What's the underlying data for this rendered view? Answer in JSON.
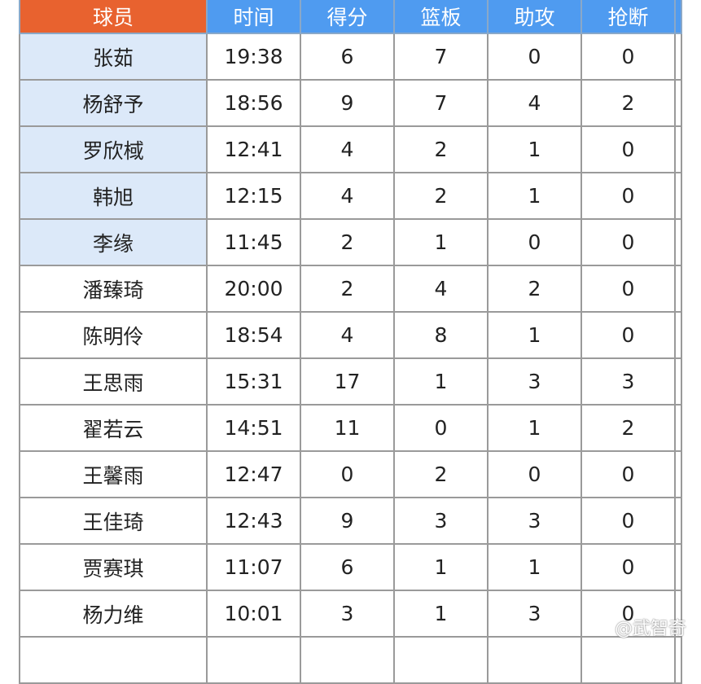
{
  "headers": [
    "球员",
    "时间",
    "得分",
    "篮板",
    "助攻",
    "抢断"
  ],
  "rows": [
    {
      "name": "张茹",
      "time": "19:38",
      "pts": "6",
      "reb": "7",
      "ast": "0",
      "stl": "0",
      "highlight": true
    },
    {
      "name": "杨舒予",
      "time": "18:56",
      "pts": "9",
      "reb": "7",
      "ast": "4",
      "stl": "2",
      "highlight": true
    },
    {
      "name": "罗欣棫",
      "time": "12:41",
      "pts": "4",
      "reb": "2",
      "ast": "1",
      "stl": "0",
      "highlight": true
    },
    {
      "name": "韩旭",
      "time": "12:15",
      "pts": "4",
      "reb": "2",
      "ast": "1",
      "stl": "0",
      "highlight": true
    },
    {
      "name": "李缘",
      "time": "11:45",
      "pts": "2",
      "reb": "1",
      "ast": "0",
      "stl": "0",
      "highlight": true
    },
    {
      "name": "潘臻琦",
      "time": "20:00",
      "pts": "2",
      "reb": "4",
      "ast": "2",
      "stl": "0",
      "highlight": false
    },
    {
      "name": "陈明伶",
      "time": "18:54",
      "pts": "4",
      "reb": "8",
      "ast": "1",
      "stl": "0",
      "highlight": false
    },
    {
      "name": "王思雨",
      "time": "15:31",
      "pts": "17",
      "reb": "1",
      "ast": "3",
      "stl": "3",
      "highlight": false
    },
    {
      "name": "翟若云",
      "time": "14:51",
      "pts": "11",
      "reb": "0",
      "ast": "1",
      "stl": "2",
      "highlight": false
    },
    {
      "name": "王馨雨",
      "time": "12:47",
      "pts": "0",
      "reb": "2",
      "ast": "0",
      "stl": "0",
      "highlight": false
    },
    {
      "name": "王佳琦",
      "time": "12:43",
      "pts": "9",
      "reb": "3",
      "ast": "3",
      "stl": "0",
      "highlight": false
    },
    {
      "name": "贾赛琪",
      "time": "11:07",
      "pts": "6",
      "reb": "1",
      "ast": "1",
      "stl": "0",
      "highlight": false
    },
    {
      "name": "杨力维",
      "time": "10:01",
      "pts": "3",
      "reb": "1",
      "ast": "3",
      "stl": "0",
      "highlight": false
    }
  ],
  "watermark": "@武智奇",
  "colors": {
    "header_name": "#e8622f",
    "header": "#4f9bf0",
    "starter_bg": "#dce9f9"
  }
}
